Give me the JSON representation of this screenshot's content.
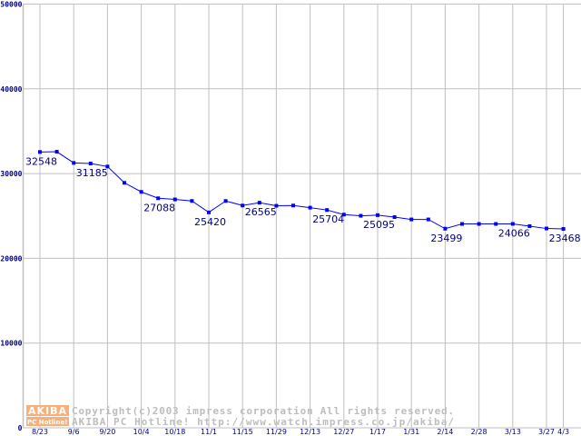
{
  "chart_data": {
    "type": "line",
    "title": "",
    "xlabel": "",
    "ylabel": "",
    "ylim": [
      0,
      50000
    ],
    "yticks": [
      "0",
      "10000",
      "20000",
      "30000",
      "40000",
      "50000"
    ],
    "grid": true,
    "x_tick_labels": [
      {
        "index": 0,
        "label": "8/23"
      },
      {
        "index": 2,
        "label": "9/6"
      },
      {
        "index": 4,
        "label": "9/20"
      },
      {
        "index": 6,
        "label": "10/4"
      },
      {
        "index": 8,
        "label": "10/18"
      },
      {
        "index": 10,
        "label": "11/1"
      },
      {
        "index": 12,
        "label": "11/15"
      },
      {
        "index": 14,
        "label": "11/29"
      },
      {
        "index": 16,
        "label": "12/13"
      },
      {
        "index": 18,
        "label": "12/27"
      },
      {
        "index": 20,
        "label": "1/17"
      },
      {
        "index": 22,
        "label": "1/31"
      },
      {
        "index": 24,
        "label": "2/14"
      },
      {
        "index": 26,
        "label": "2/28"
      },
      {
        "index": 28,
        "label": "3/13"
      },
      {
        "index": 30,
        "label": "3/27"
      },
      {
        "index": 31,
        "label": "4/3"
      }
    ],
    "series": [
      {
        "name": "price",
        "color": "#0000ff",
        "values": [
          32548,
          32580,
          31260,
          31185,
          30835,
          28910,
          27840,
          27088,
          26950,
          26770,
          25420,
          26770,
          26230,
          26565,
          26200,
          26230,
          25980,
          25704,
          25160,
          25020,
          25095,
          24870,
          24590,
          24590,
          23499,
          24060,
          24060,
          24060,
          24066,
          23800,
          23520,
          23468
        ]
      }
    ],
    "data_labels": [
      {
        "index": 0,
        "text": "32548"
      },
      {
        "index": 3,
        "text": "31185"
      },
      {
        "index": 7,
        "text": "27088"
      },
      {
        "index": 10,
        "text": "25420"
      },
      {
        "index": 13,
        "text": "26565"
      },
      {
        "index": 17,
        "text": "25704"
      },
      {
        "index": 20,
        "text": "25095"
      },
      {
        "index": 24,
        "text": "23499"
      },
      {
        "index": 28,
        "text": "24066"
      },
      {
        "index": 31,
        "text": "23468"
      }
    ]
  },
  "watermark": {
    "logo_top": "AKIBA",
    "logo_bottom": "PC Hotline!",
    "line1": "Copyright(c)2003 impress corporation All rights reserved.",
    "line2": "AKIBA PC Hotline!  http://www.watch.impress.co.jp/akiba/",
    "logo_color": "#f7b07a"
  }
}
